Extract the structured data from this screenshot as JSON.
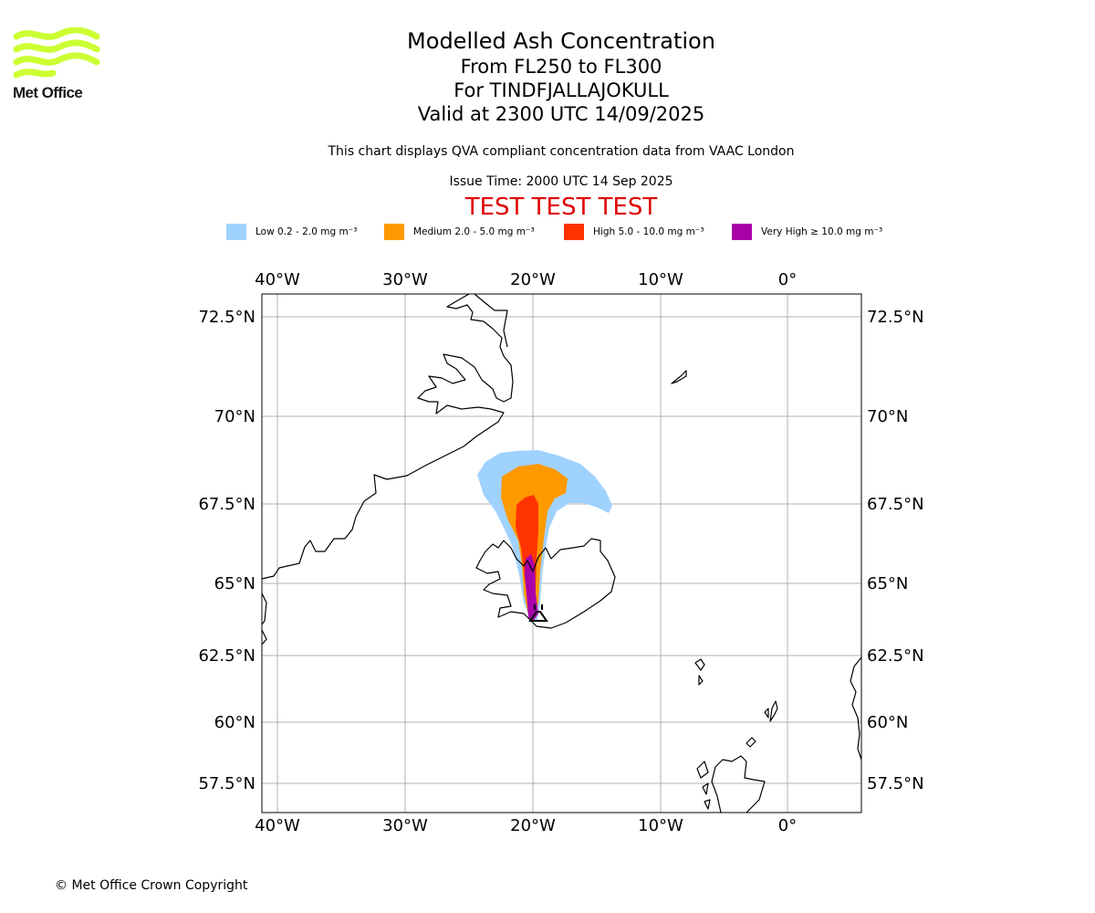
{
  "brand": {
    "name": "Met Office",
    "logo_color": "#ccff33"
  },
  "title": {
    "line1": "Modelled Ash Concentration",
    "line2": "From FL250 to FL300",
    "line3": "For TINDFJALLAJOKULL",
    "line4": "Valid at 2300 UTC 14/09/2025"
  },
  "subtitle": "This chart displays QVA compliant concentration data from VAAC London",
  "issue_time": "Issue Time: 2000 UTC 14 Sep 2025",
  "test_banner": "TEST TEST TEST",
  "legend": [
    {
      "label": "Low 0.2 - 2.0 mg m⁻³",
      "color": "#a0d2ff"
    },
    {
      "label": "Medium 2.0 - 5.0 mg m⁻³",
      "color": "#ff9900"
    },
    {
      "label": "High 5.0 - 10.0 mg m⁻³",
      "color": "#ff3300"
    },
    {
      "label": "Very High ≥ 10.0 mg m⁻³",
      "color": "#aa00aa"
    }
  ],
  "map": {
    "lon_labels": [
      "40°W",
      "30°W",
      "20°W",
      "10°W",
      "0°"
    ],
    "lat_labels": [
      "72.5°N",
      "70°N",
      "67.5°N",
      "65°N",
      "62.5°N",
      "60°N",
      "57.5°N"
    ],
    "volcano": "TINDFJALLAJOKULL"
  },
  "copyright": "© Met Office Crown Copyright"
}
